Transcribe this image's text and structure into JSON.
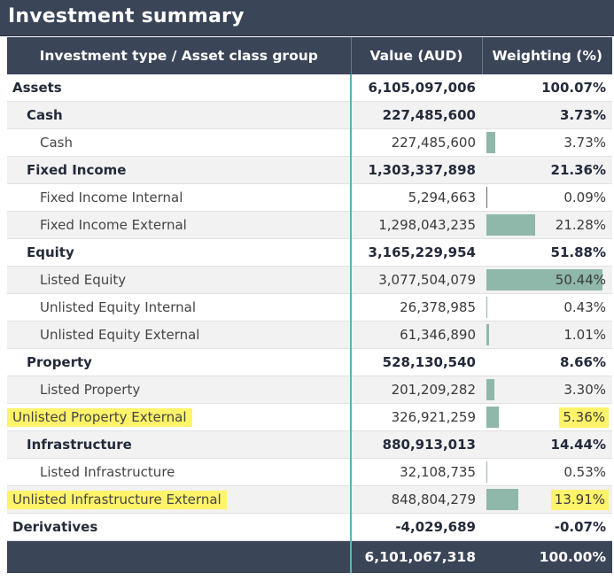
{
  "title": "Investment summary",
  "columns": [
    "Investment type / Asset class group",
    "Value (AUD)",
    "Weighting (%)"
  ],
  "rows": [
    {
      "label": "Assets",
      "level": 0,
      "value": "6,105,097,006",
      "weight": "100.07%",
      "bar": 0,
      "highlight": false
    },
    {
      "label": "Cash",
      "level": 1,
      "value": "227,485,600",
      "weight": "3.73%",
      "bar": 0,
      "highlight": false
    },
    {
      "label": "Cash",
      "level": 2,
      "value": "227,485,600",
      "weight": "3.73%",
      "bar": 3.73,
      "highlight": false
    },
    {
      "label": "Fixed Income",
      "level": 1,
      "value": "1,303,337,898",
      "weight": "21.36%",
      "bar": 0,
      "highlight": false
    },
    {
      "label": "Fixed Income Internal",
      "level": 2,
      "value": "5,294,663",
      "weight": "0.09%",
      "bar": 0.09,
      "highlight": false
    },
    {
      "label": "Fixed Income External",
      "level": 2,
      "value": "1,298,043,235",
      "weight": "21.28%",
      "bar": 21.28,
      "highlight": false
    },
    {
      "label": "Equity",
      "level": 1,
      "value": "3,165,229,954",
      "weight": "51.88%",
      "bar": 0,
      "highlight": false
    },
    {
      "label": "Listed Equity",
      "level": 2,
      "value": "3,077,504,079",
      "weight": "50.44%",
      "bar": 50.44,
      "highlight": false
    },
    {
      "label": "Unlisted Equity Internal",
      "level": 2,
      "value": "26,378,985",
      "weight": "0.43%",
      "bar": 0.43,
      "highlight": false
    },
    {
      "label": "Unlisted Equity External",
      "level": 2,
      "value": "61,346,890",
      "weight": "1.01%",
      "bar": 1.01,
      "highlight": false
    },
    {
      "label": "Property",
      "level": 1,
      "value": "528,130,540",
      "weight": "8.66%",
      "bar": 0,
      "highlight": false
    },
    {
      "label": "Listed Property",
      "level": 2,
      "value": "201,209,282",
      "weight": "3.30%",
      "bar": 3.3,
      "highlight": false
    },
    {
      "label": "Unlisted Property External",
      "level": 2,
      "value": "326,921,259",
      "weight": "5.36%",
      "bar": 5.36,
      "highlight": true
    },
    {
      "label": "Infrastructure",
      "level": 1,
      "value": "880,913,013",
      "weight": "14.44%",
      "bar": 0,
      "highlight": false
    },
    {
      "label": "Listed Infrastructure",
      "level": 2,
      "value": "32,108,735",
      "weight": "0.53%",
      "bar": 0.53,
      "highlight": false
    },
    {
      "label": "Unlisted Infrastructure External",
      "level": 2,
      "value": "848,804,279",
      "weight": "13.91%",
      "bar": 13.91,
      "highlight": true
    },
    {
      "label": "Derivatives",
      "level": 0,
      "value": "-4,029,689",
      "weight": "-0.07%",
      "bar": 0,
      "highlight": false
    }
  ],
  "total": {
    "label": "",
    "value": "6,101,067,318",
    "weight": "100.00%"
  },
  "colors": {
    "header": "#3b4558",
    "bar": "#8fb7aa",
    "highlight": "#fff36a",
    "divider": "#5fb3b3"
  }
}
